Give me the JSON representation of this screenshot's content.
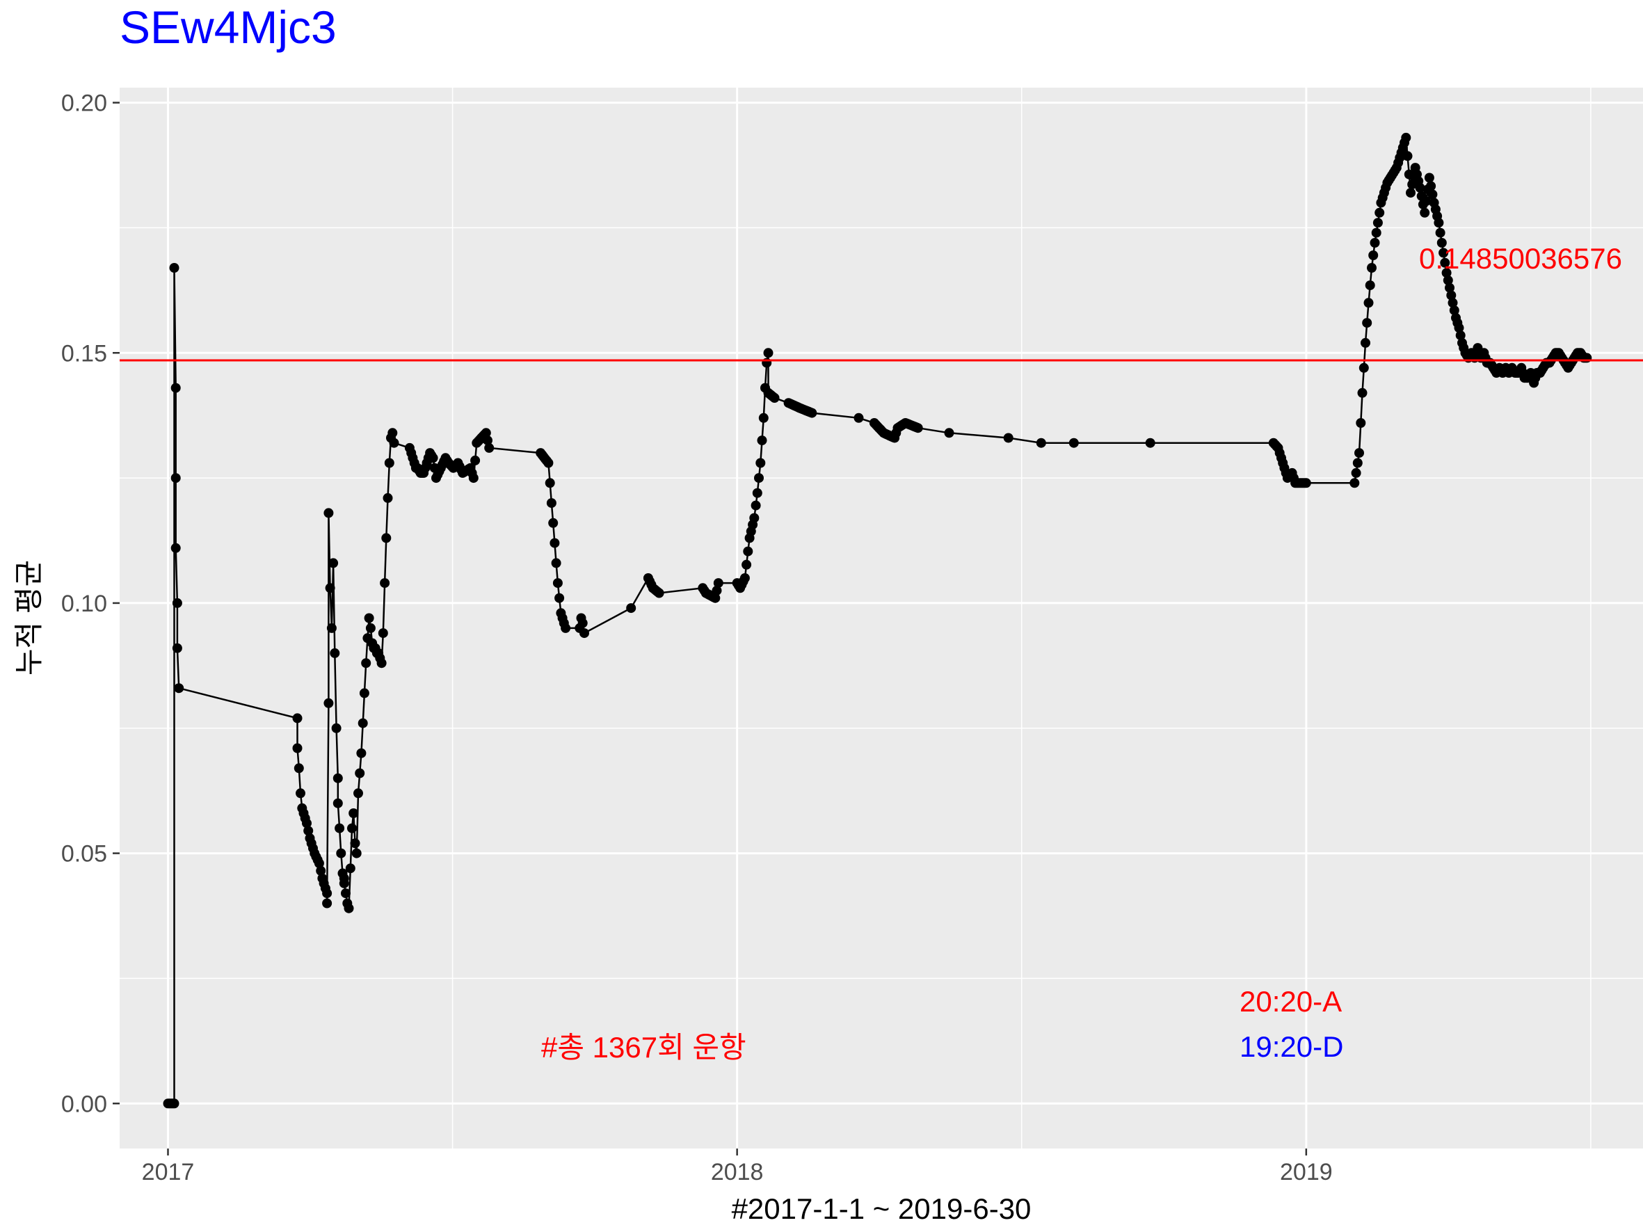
{
  "colors": {
    "panel": "#ebebeb",
    "grid": "#ffffff",
    "series": "#000000",
    "hline": "#ff0000",
    "title": "#0000ff",
    "anno_red": "#ff0000",
    "anno_blue": "#0000ff"
  },
  "chart_data": {
    "type": "line",
    "title": "SEw4Mjc3",
    "xlabel": "#2017-1-1 ~ 2019-6-30",
    "ylabel": "누적 평균",
    "xlim": [
      "2016-12-01",
      "2019-08-05"
    ],
    "ylim": [
      -0.009,
      0.203
    ],
    "x_ticks": [
      "2017-01-01",
      "2018-01-01",
      "2019-01-01"
    ],
    "x_tick_labels": [
      "2017",
      "2018",
      "2019"
    ],
    "y_ticks": [
      0.0,
      0.05,
      0.1,
      0.15,
      0.2
    ],
    "y_tick_labels": [
      "0.00",
      "0.05",
      "0.10",
      "0.15",
      "0.20"
    ],
    "grid": true,
    "hline": {
      "y": 0.1485003657,
      "label": "0.14850036576"
    },
    "annotations": [
      {
        "text": "#총 1367회 운항",
        "color": "red"
      },
      {
        "text": "20:20-A",
        "color": "red"
      },
      {
        "text": "19:20-D",
        "color": "blue"
      }
    ],
    "series": [
      {
        "x": [
          "2017-01-01",
          "2017-01-03",
          "2017-01-05",
          "2017-01-05",
          "2017-01-06",
          "2017-01-06",
          "2017-01-06",
          "2017-01-07",
          "2017-01-07",
          "2017-01-08",
          "2017-03-25",
          "2017-03-25",
          "2017-03-26",
          "2017-03-27",
          "2017-03-28",
          "2017-03-31",
          "2017-04-02",
          "2017-04-05",
          "2017-04-08",
          "2017-04-10",
          "2017-04-12",
          "2017-04-13",
          "2017-04-13",
          "2017-04-14",
          "2017-04-14",
          "2017-04-15",
          "2017-04-16",
          "2017-04-17",
          "2017-04-18",
          "2017-04-19",
          "2017-04-20",
          "2017-04-20",
          "2017-04-21",
          "2017-04-22",
          "2017-04-23",
          "2017-04-24",
          "2017-04-24",
          "2017-04-25",
          "2017-04-26",
          "2017-04-27",
          "2017-04-28",
          "2017-04-29",
          "2017-04-30",
          "2017-05-01",
          "2017-05-02",
          "2017-05-03",
          "2017-05-05",
          "2017-05-06",
          "2017-05-07",
          "2017-05-08",
          "2017-05-09",
          "2017-05-10",
          "2017-05-11",
          "2017-05-12",
          "2017-05-13",
          "2017-05-14",
          "2017-05-15",
          "2017-05-16",
          "2017-05-17",
          "2017-05-18",
          "2017-05-19",
          "2017-05-20",
          "2017-05-21",
          "2017-05-22",
          "2017-05-23",
          "2017-05-24",
          "2017-05-25",
          "2017-05-26",
          "2017-06-05",
          "2017-06-07",
          "2017-06-09",
          "2017-06-10",
          "2017-06-12",
          "2017-06-14",
          "2017-06-16",
          "2017-06-18",
          "2017-06-20",
          "2017-06-22",
          "2017-06-28",
          "2017-06-30",
          "2017-07-03",
          "2017-07-06",
          "2017-07-09",
          "2017-07-14",
          "2017-07-16",
          "2017-07-18",
          "2017-07-24",
          "2017-07-26",
          "2017-08-28",
          "2017-09-02",
          "2017-09-04",
          "2017-09-06",
          "2017-09-08",
          "2017-09-10",
          "2017-09-13",
          "2017-09-22",
          "2017-09-23",
          "2017-09-24",
          "2017-09-25",
          "2017-10-25",
          "2017-11-05",
          "2017-11-08",
          "2017-11-12",
          "2017-12-10",
          "2017-12-12",
          "2017-12-18",
          "2017-12-20",
          "2018-01-01",
          "2018-01-03",
          "2018-01-06",
          "2018-01-09",
          "2018-01-12",
          "2018-01-14",
          "2018-01-16",
          "2018-01-18",
          "2018-01-19",
          "2018-01-20",
          "2018-01-21",
          "2018-01-21",
          "2018-01-25",
          "2018-02-03",
          "2018-02-10",
          "2018-02-18",
          "2018-03-20",
          "2018-03-30",
          "2018-04-05",
          "2018-04-12",
          "2018-04-14",
          "2018-04-19",
          "2018-04-27",
          "2018-05-17",
          "2018-06-24",
          "2018-07-15",
          "2018-08-05",
          "2018-09-23",
          "2018-12-11",
          "2018-12-14",
          "2018-12-16",
          "2018-12-18",
          "2018-12-20",
          "2018-12-23",
          "2018-12-24",
          "2018-12-25",
          "2018-12-28",
          "2019-01-01",
          "2019-02-01",
          "2019-02-04",
          "2019-02-06",
          "2019-02-08",
          "2019-02-10",
          "2019-02-12",
          "2019-02-14",
          "2019-02-16",
          "2019-02-18",
          "2019-02-20",
          "2019-02-22",
          "2019-02-24",
          "2019-02-26",
          "2019-02-28",
          "2019-03-03",
          "2019-03-06",
          "2019-03-09",
          "2019-03-12",
          "2019-03-15",
          "2019-03-18",
          "2019-03-21",
          "2019-03-24",
          "2019-03-27",
          "2019-03-28",
          "2019-03-30",
          "2019-04-01",
          "2019-04-03",
          "2019-04-05",
          "2019-04-07",
          "2019-04-09",
          "2019-04-11",
          "2019-04-13",
          "2019-04-15",
          "2019-04-17",
          "2019-04-19",
          "2019-04-21",
          "2019-04-23",
          "2019-04-25",
          "2019-04-27",
          "2019-04-29",
          "2019-05-01",
          "2019-05-03",
          "2019-05-05",
          "2019-05-07",
          "2019-05-09",
          "2019-05-11",
          "2019-05-13",
          "2019-05-15",
          "2019-05-17",
          "2019-05-19",
          "2019-05-21",
          "2019-05-23",
          "2019-05-25",
          "2019-05-27",
          "2019-05-29",
          "2019-05-31",
          "2019-06-02",
          "2019-06-04",
          "2019-06-06",
          "2019-06-08",
          "2019-06-10",
          "2019-06-12",
          "2019-06-14",
          "2019-06-16",
          "2019-06-18",
          "2019-06-20",
          "2019-06-22",
          "2019-06-24",
          "2019-06-26",
          "2019-06-28",
          "2019-06-30"
        ],
        "y": [
          0.0,
          0.0,
          0.0,
          0.167,
          0.143,
          0.125,
          0.111,
          0.1,
          0.091,
          0.083,
          0.077,
          0.071,
          0.067,
          0.062,
          0.059,
          0.056,
          0.053,
          0.05,
          0.048,
          0.045,
          0.043,
          0.042,
          0.04,
          0.08,
          0.118,
          0.103,
          0.095,
          0.108,
          0.09,
          0.075,
          0.065,
          0.06,
          0.055,
          0.05,
          0.046,
          0.045,
          0.044,
          0.042,
          0.04,
          0.039,
          0.047,
          0.055,
          0.058,
          0.052,
          0.05,
          0.062,
          0.07,
          0.076,
          0.082,
          0.088,
          0.093,
          0.097,
          0.095,
          0.092,
          0.091,
          0.091,
          0.09,
          0.09,
          0.089,
          0.088,
          0.094,
          0.104,
          0.113,
          0.121,
          0.128,
          0.133,
          0.134,
          0.132,
          0.131,
          0.129,
          0.127,
          0.127,
          0.126,
          0.126,
          0.128,
          0.13,
          0.129,
          0.125,
          0.129,
          0.128,
          0.127,
          0.128,
          0.126,
          0.127,
          0.125,
          0.132,
          0.134,
          0.131,
          0.13,
          0.128,
          0.12,
          0.112,
          0.104,
          0.098,
          0.095,
          0.095,
          0.097,
          0.096,
          0.094,
          0.099,
          0.105,
          0.103,
          0.102,
          0.103,
          0.102,
          0.101,
          0.104,
          0.104,
          0.103,
          0.105,
          0.113,
          0.117,
          0.122,
          0.128,
          0.137,
          0.143,
          0.148,
          0.15,
          0.142,
          0.141,
          0.14,
          0.139,
          0.138,
          0.137,
          0.136,
          0.134,
          0.133,
          0.135,
          0.136,
          0.135,
          0.134,
          0.133,
          0.132,
          0.132,
          0.132,
          0.132,
          0.131,
          0.129,
          0.127,
          0.125,
          0.126,
          0.125,
          0.124,
          0.124,
          0.124,
          0.124,
          0.13,
          0.142,
          0.152,
          0.16,
          0.167,
          0.172,
          0.176,
          0.18,
          0.182,
          0.184,
          0.185,
          0.186,
          0.187,
          0.19,
          0.193,
          0.182,
          0.187,
          0.183,
          0.178,
          0.185,
          0.18,
          0.176,
          0.174,
          0.17,
          0.166,
          0.163,
          0.16,
          0.157,
          0.155,
          0.152,
          0.15,
          0.149,
          0.15,
          0.149,
          0.151,
          0.149,
          0.15,
          0.148,
          0.148,
          0.147,
          0.146,
          0.147,
          0.146,
          0.147,
          0.146,
          0.147,
          0.146,
          0.146,
          0.147,
          0.145,
          0.145,
          0.146,
          0.144,
          0.146,
          0.146,
          0.147,
          0.148,
          0.148,
          0.149,
          0.15,
          0.15,
          0.149,
          0.148,
          0.147,
          0.148,
          0.149,
          0.15,
          0.15,
          0.149,
          0.149
        ]
      }
    ]
  }
}
